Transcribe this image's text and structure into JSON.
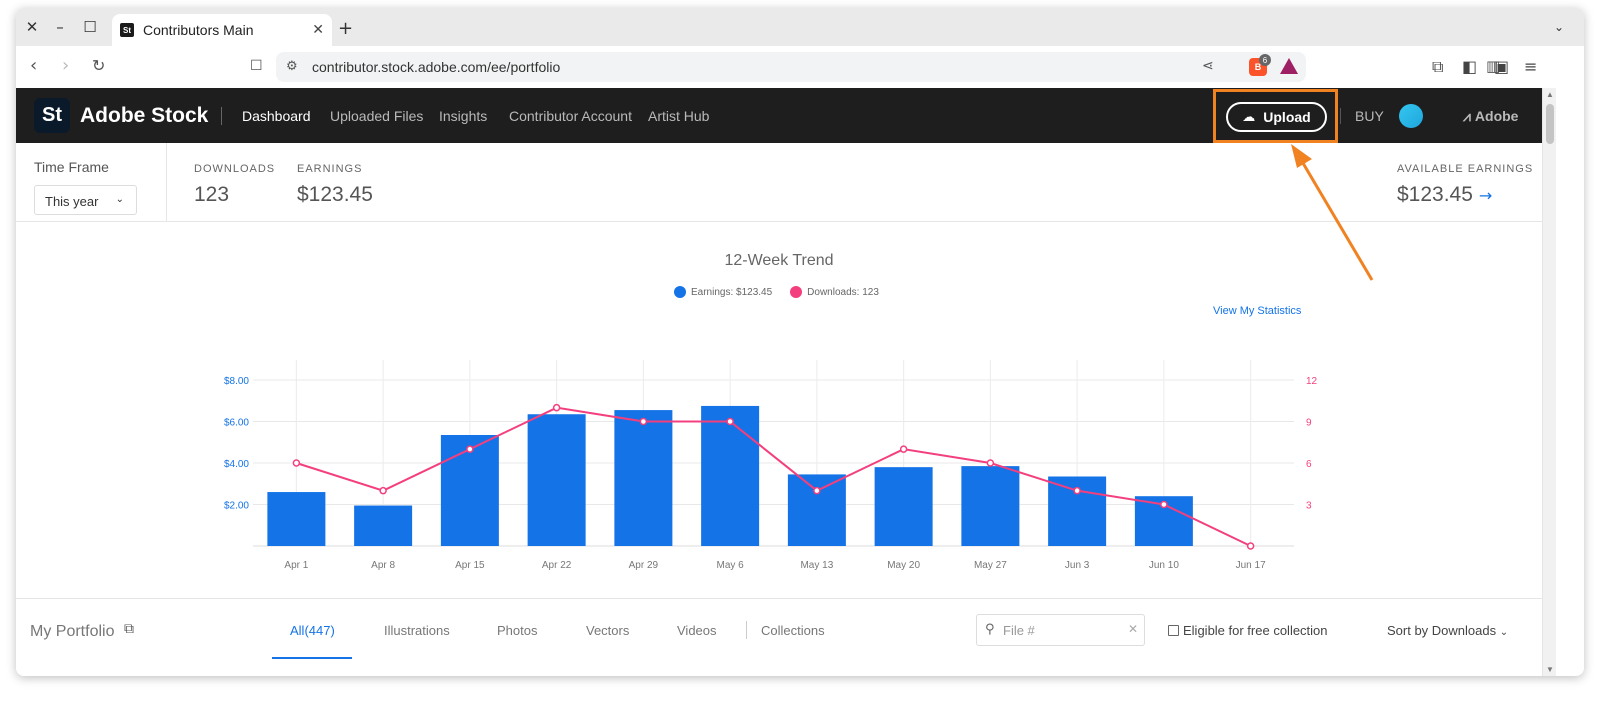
{
  "browser": {
    "tab_title": "Contributors Main",
    "tab_favicon": "St",
    "url": "contributor.stock.adobe.com/ee/portfolio",
    "extension_badge": "6"
  },
  "header": {
    "logo": "St",
    "brand": "Adobe Stock",
    "nav": [
      "Dashboard",
      "Uploaded Files",
      "Insights",
      "Contributor Account",
      "Artist Hub"
    ],
    "upload_label": "Upload",
    "buy_label": "BUY",
    "adobe_label": "Adobe"
  },
  "stats": {
    "time_frame_label": "Time Frame",
    "time_frame_value": "This year",
    "downloads_label": "DOWNLOADS",
    "downloads_value": "123",
    "earnings_label": "EARNINGS",
    "earnings_value": "$123.45",
    "available_label": "AVAILABLE EARNINGS",
    "available_value": "$123.45"
  },
  "chart_data": {
    "type": "bar",
    "title": "12-Week Trend",
    "categories": [
      "Apr 1",
      "Apr 8",
      "Apr 15",
      "Apr 22",
      "Apr 29",
      "May 6",
      "May 13",
      "May 20",
      "May 27",
      "Jun 3",
      "Jun 10",
      "Jun 17"
    ],
    "series": [
      {
        "name": "Earnings: $123.45",
        "type": "bar",
        "axis": "left",
        "color": "#1473e6",
        "values": [
          2.6,
          1.95,
          5.35,
          6.35,
          6.55,
          6.75,
          3.45,
          3.8,
          3.85,
          3.35,
          2.4,
          0
        ]
      },
      {
        "name": "Downloads: 123",
        "type": "line",
        "axis": "right",
        "color": "#f43f7f",
        "values": [
          6,
          4,
          7,
          10,
          9,
          9,
          4,
          7,
          6,
          4,
          3,
          0
        ]
      }
    ],
    "y_left": {
      "ticks": [
        "$2.00",
        "$4.00",
        "$6.00",
        "$8.00"
      ],
      "tick_values": [
        2,
        4,
        6,
        8
      ],
      "range": [
        0,
        8
      ]
    },
    "y_right": {
      "ticks": [
        "3",
        "6",
        "9",
        "12"
      ],
      "tick_values": [
        3,
        6,
        9,
        12
      ],
      "range": [
        0,
        12
      ]
    },
    "grid": true,
    "legend_position": "top-center",
    "link_label": "View My Statistics"
  },
  "portfolio": {
    "title": "My Portfolio",
    "tabs": [
      "All(447)",
      "Illustrations",
      "Photos",
      "Vectors",
      "Videos",
      "Collections"
    ],
    "search_placeholder": "File #",
    "checkbox_label": "Eligible for free collection",
    "sort_label": "Sort by Downloads"
  },
  "colors": {
    "accent": "#1473e6",
    "line": "#f43f7f",
    "highlight": "#f08221",
    "header_bg": "#1e1e1e"
  }
}
